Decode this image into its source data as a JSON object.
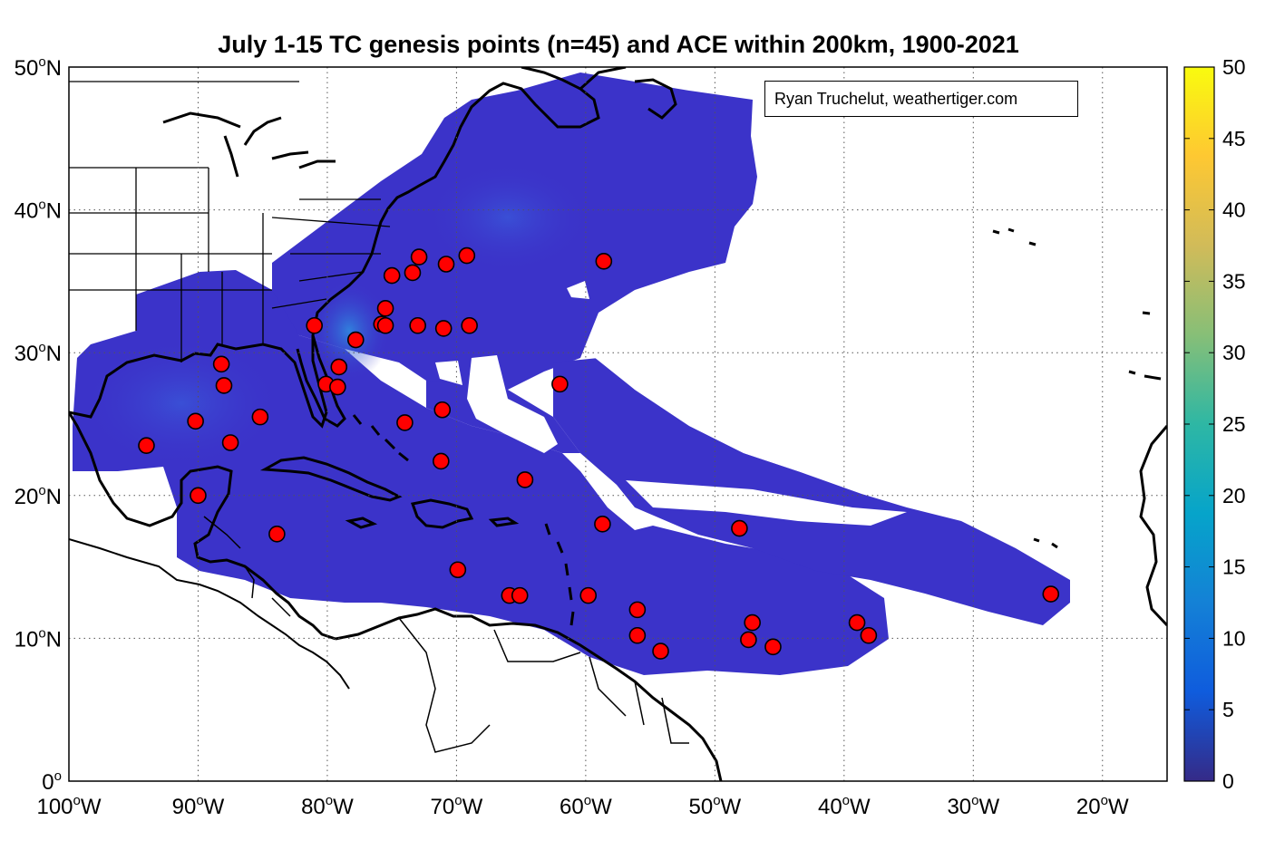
{
  "title": "July 1-15 TC genesis points (n=45) and ACE within 200km, 1900-2021",
  "credit": "Ryan Truchelut, weathertiger.com",
  "map": {
    "lon_range": [
      -100,
      -15
    ],
    "lat_range": [
      0,
      50
    ],
    "x_ticks": [
      {
        "lon": -100,
        "num": "100",
        "hemi": "W"
      },
      {
        "lon": -90,
        "num": "90",
        "hemi": "W"
      },
      {
        "lon": -80,
        "num": "80",
        "hemi": "W"
      },
      {
        "lon": -70,
        "num": "70",
        "hemi": "W"
      },
      {
        "lon": -60,
        "num": "60",
        "hemi": "W"
      },
      {
        "lon": -50,
        "num": "50",
        "hemi": "W"
      },
      {
        "lon": -40,
        "num": "40",
        "hemi": "W"
      },
      {
        "lon": -30,
        "num": "30",
        "hemi": "W"
      },
      {
        "lon": -20,
        "num": "20",
        "hemi": "W"
      }
    ],
    "y_ticks": [
      {
        "lat": 50,
        "num": "50",
        "hemi": "N"
      },
      {
        "lat": 40,
        "num": "40",
        "hemi": "N"
      },
      {
        "lat": 30,
        "num": "30",
        "hemi": "N"
      },
      {
        "lat": 20,
        "num": "20",
        "hemi": "N"
      },
      {
        "lat": 10,
        "num": "10",
        "hemi": "N"
      },
      {
        "lat": 0,
        "num": "0",
        "hemi": ""
      }
    ],
    "degree_symbol": "o",
    "grid": "dotted",
    "ace_fill_color": "#3b33c9",
    "ace_max_color": "#2e8ce0",
    "point_color": "#ff0000",
    "point_outline": "#000000"
  },
  "colorbar": {
    "min": 0,
    "max": 50,
    "ticks": [
      "0",
      "5",
      "10",
      "15",
      "20",
      "25",
      "30",
      "35",
      "40",
      "45",
      "50"
    ],
    "colormap": "parula",
    "colors": [
      "#352a87",
      "#0f5cdd",
      "#1481d6",
      "#06a4ca",
      "#2eb7a4",
      "#87bf77",
      "#d1bb59",
      "#fec832",
      "#f9fb0e"
    ]
  },
  "chart_data": {
    "type": "scatter",
    "title": "July 1-15 TC genesis points (n=45) and ACE within 200km, 1900-2021",
    "xlabel": "",
    "ylabel": "",
    "xlim": [
      -100,
      -15
    ],
    "ylim": [
      0,
      50
    ],
    "grid": true,
    "series": [
      {
        "points": [
          [
            -72.9,
            36.7
          ],
          [
            -69.2,
            36.8
          ],
          [
            -70.8,
            36.2
          ],
          [
            -73.4,
            35.6
          ],
          [
            -75.0,
            35.4
          ],
          [
            -58.6,
            36.4
          ],
          [
            -75.5,
            33.1
          ],
          [
            -75.8,
            32.0
          ],
          [
            -75.5,
            31.9
          ],
          [
            -73.0,
            31.9
          ],
          [
            -71.0,
            31.7
          ],
          [
            -69.0,
            31.9
          ],
          [
            -81.0,
            31.9
          ],
          [
            -77.8,
            30.9
          ],
          [
            -79.1,
            29.0
          ],
          [
            -88.2,
            29.2
          ],
          [
            -88.0,
            27.7
          ],
          [
            -80.1,
            27.8
          ],
          [
            -79.2,
            27.6
          ],
          [
            -62.0,
            27.8
          ],
          [
            -85.2,
            25.5
          ],
          [
            -90.2,
            25.2
          ],
          [
            -71.1,
            26.0
          ],
          [
            -74.0,
            25.1
          ],
          [
            -94.0,
            23.5
          ],
          [
            -87.5,
            23.7
          ],
          [
            -71.2,
            22.4
          ],
          [
            -64.7,
            21.1
          ],
          [
            -90.0,
            20.0
          ],
          [
            -58.7,
            18.0
          ],
          [
            -48.1,
            17.7
          ],
          [
            -83.9,
            17.3
          ],
          [
            -69.9,
            14.8
          ],
          [
            -65.9,
            13.0
          ],
          [
            -65.1,
            13.0
          ],
          [
            -59.8,
            13.0
          ],
          [
            -24.0,
            13.1
          ],
          [
            -56.0,
            12.0
          ],
          [
            -56.0,
            10.2
          ],
          [
            -54.2,
            9.1
          ],
          [
            -47.1,
            11.1
          ],
          [
            -47.4,
            9.9
          ],
          [
            -45.5,
            9.4
          ],
          [
            -39.0,
            11.1
          ],
          [
            -38.1,
            10.2
          ]
        ]
      }
    ]
  }
}
